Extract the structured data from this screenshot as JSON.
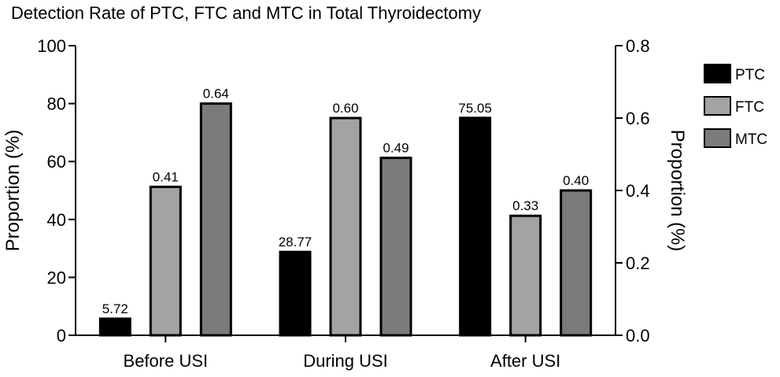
{
  "chart_data": {
    "type": "bar",
    "title": "Detection Rate of PTC, FTC and MTC in Total Thyroidectomy",
    "categories": [
      "Before USI",
      "During USI",
      "After USI"
    ],
    "series": [
      {
        "name": "PTC",
        "axis": "left",
        "values": [
          5.72,
          28.77,
          75.05
        ],
        "labels": [
          "5.72",
          "28.77",
          "75.05"
        ],
        "color": "#000000"
      },
      {
        "name": "FTC",
        "axis": "right",
        "values": [
          0.41,
          0.6,
          0.33
        ],
        "labels": [
          "0.41",
          "0.60",
          "0.33"
        ],
        "color": "#a3a3a6"
      },
      {
        "name": "MTC",
        "axis": "right",
        "values": [
          0.64,
          0.49,
          0.4
        ],
        "labels": [
          "0.64",
          "0.49",
          "0.40"
        ],
        "color": "#7b7b7b"
      }
    ],
    "left_axis": {
      "label": "Proportion (%)",
      "min": 0,
      "max": 100,
      "ticks": [
        0,
        20,
        40,
        60,
        80,
        100
      ],
      "tick_labels": [
        "0",
        "20",
        "40",
        "60",
        "80",
        "100"
      ]
    },
    "right_axis": {
      "label": "Proportion (%)",
      "min": 0,
      "max": 0.8,
      "ticks": [
        0,
        0.2,
        0.4,
        0.6,
        0.8
      ],
      "tick_labels": [
        "0.0",
        "0.2",
        "0.4",
        "0.6",
        "0.8"
      ]
    },
    "grid": false,
    "legend": {
      "placement": "right",
      "entries": [
        "PTC",
        "FTC",
        "MTC"
      ]
    }
  }
}
